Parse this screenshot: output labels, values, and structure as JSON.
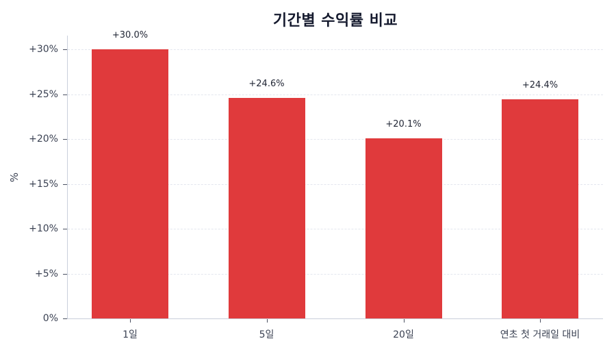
{
  "chart_data": {
    "type": "bar",
    "title": "기간별 수익률 비교",
    "xlabel": "",
    "ylabel": "%",
    "categories": [
      "1일",
      "5일",
      "20일",
      "연초 첫 거래일 대비"
    ],
    "values": [
      30.0,
      24.6,
      20.1,
      24.4
    ],
    "value_labels": [
      "+30.0%",
      "+24.6%",
      "+20.1%",
      "+24.4%"
    ],
    "ylim": [
      0,
      30
    ],
    "yticks": [
      0,
      5,
      10,
      15,
      20,
      25,
      30
    ],
    "ytick_labels": [
      "0%",
      "+5%",
      "+10%",
      "+15%",
      "+20%",
      "+25%",
      "+30%"
    ],
    "grid": "horizontal-dashed",
    "legend": null,
    "bar_color": "#e03a3c"
  }
}
